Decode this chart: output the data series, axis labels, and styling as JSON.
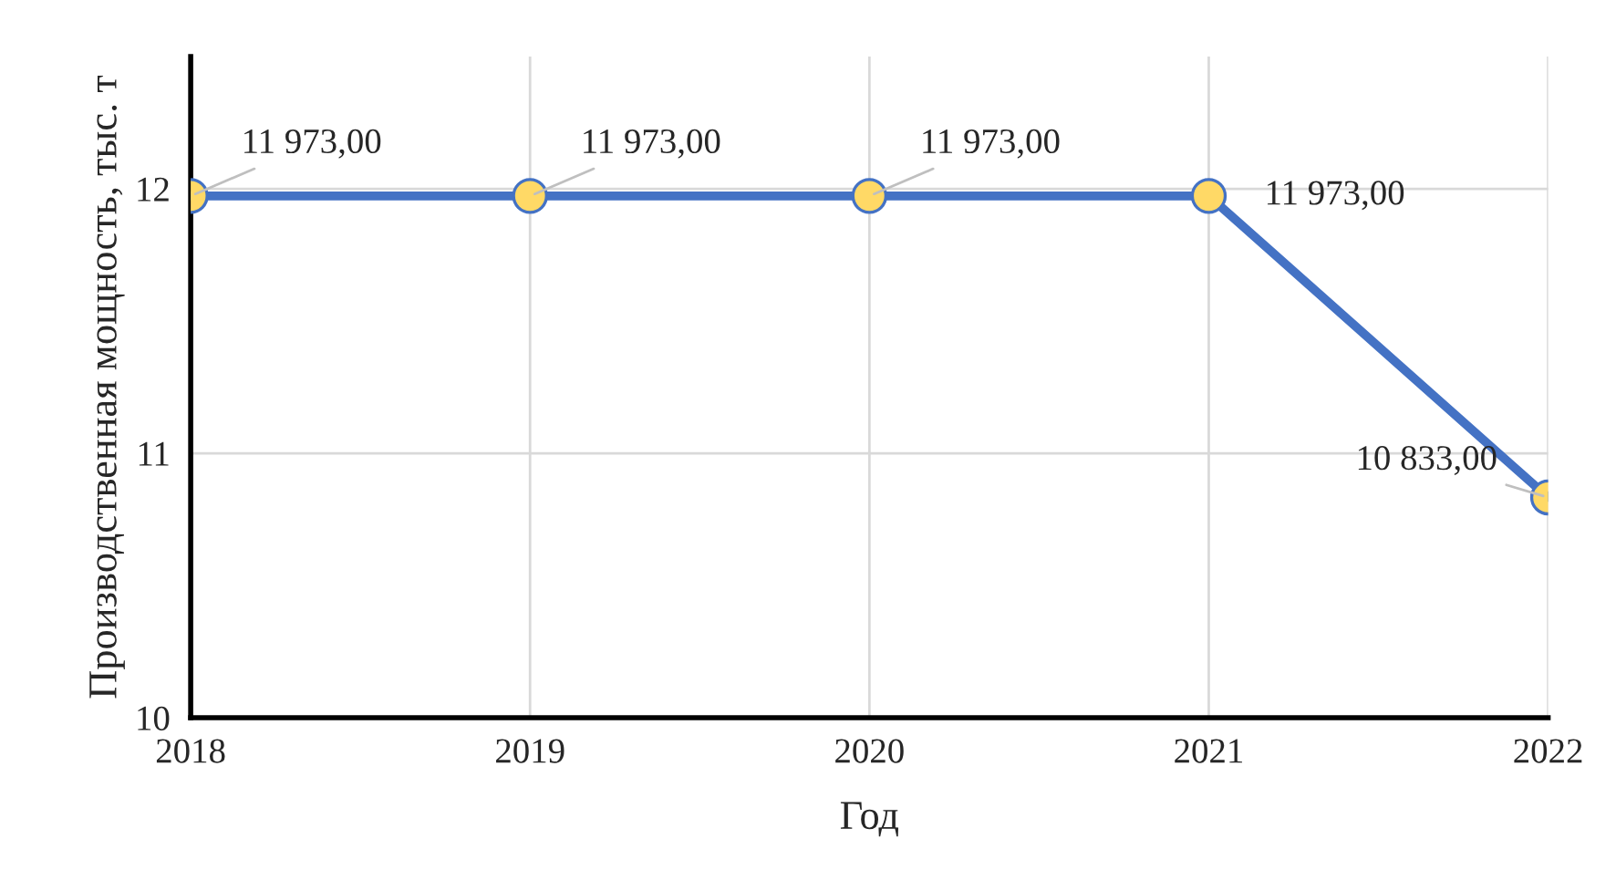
{
  "chart_data": {
    "type": "line",
    "xlabel": "Год",
    "ylabel": "Производственная мощность, тыс. т",
    "categories": [
      "2018",
      "2019",
      "2020",
      "2021",
      "2022"
    ],
    "series": [
      {
        "color": "#4472c4",
        "values": [
          11.973,
          11.973,
          11.973,
          11.973,
          10.833
        ]
      }
    ],
    "annotations": [
      {
        "text": "11 973,00",
        "x": "2018",
        "y": 11.973
      },
      {
        "text": "11 973,00",
        "x": "2019",
        "y": 11.973
      },
      {
        "text": "11 973,00",
        "x": "2020",
        "y": 11.973
      },
      {
        "text": "11 973,00",
        "x": "2021",
        "y": 11.973
      },
      {
        "text": "10 833,00",
        "x": "2022",
        "y": 10.833
      }
    ],
    "ylim": [
      10,
      12.5
    ],
    "yticks": [
      10,
      11,
      12
    ],
    "grid": true,
    "marker": "circle",
    "line_style": "solid"
  }
}
